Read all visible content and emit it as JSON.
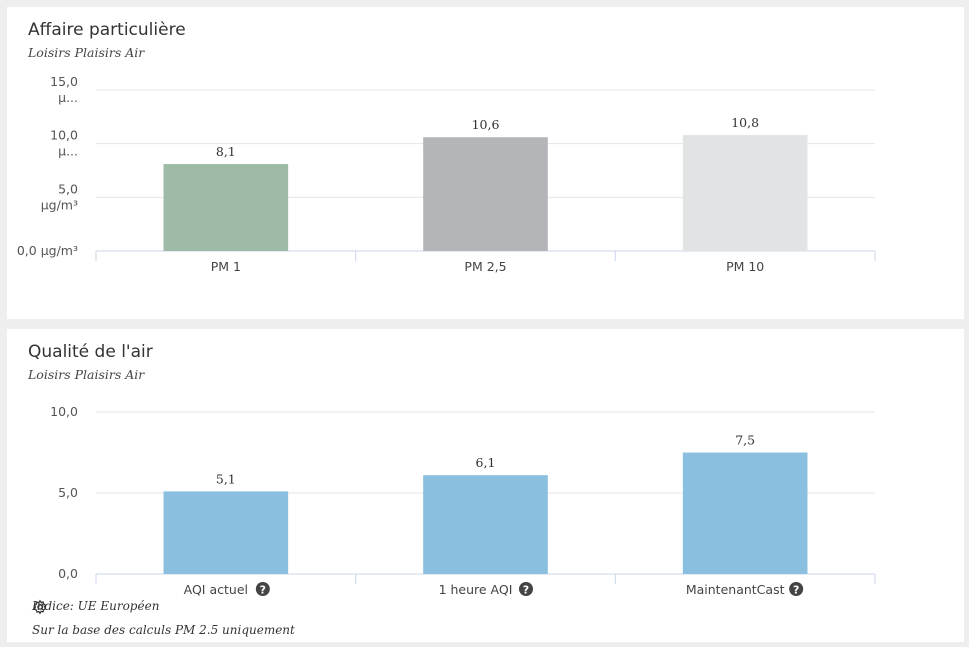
{
  "panels": {
    "pm": {
      "title": "Affaire particulière",
      "subtitle": "Loisirs Plaisirs Air"
    },
    "aqi": {
      "title": "Qualité de l'air",
      "subtitle": "Loisirs Plaisirs Air",
      "index_label": "Indice: UE Européen",
      "basis_note": "Sur la base des calculs PM 2.5 uniquement"
    }
  },
  "chart_data": [
    {
      "type": "bar",
      "title": "Affaire particulière",
      "subtitle": "Loisirs Plaisirs Air",
      "categories": [
        "PM 1",
        "PM 2,5",
        "PM 10"
      ],
      "values": [
        8.1,
        10.6,
        10.8
      ],
      "value_labels": [
        "8,1",
        "10,6",
        "10,8"
      ],
      "bar_colors": [
        "#9dbba7",
        "#b3b5b9",
        "#e2e3e4"
      ],
      "yticks": [
        0,
        5,
        10,
        15
      ],
      "ytick_labels": [
        "0,0 µg/m³",
        "5,0 µg/m³",
        "10,0 µ...",
        "15,0 µ..."
      ],
      "ylim": [
        0,
        15
      ],
      "grid": true,
      "legend": "none"
    },
    {
      "type": "bar",
      "title": "Qualité de l'air",
      "subtitle": "Loisirs Plaisirs Air",
      "categories": [
        "AQI actuel",
        "1 heure AQI",
        "MaintenantCast"
      ],
      "values": [
        5.1,
        6.1,
        7.5
      ],
      "value_labels": [
        "5,1",
        "6,1",
        "7,5"
      ],
      "bar_colors": [
        "#8bbfdf",
        "#8bbfdf",
        "#8bbfdf"
      ],
      "category_help_icons": [
        true,
        true,
        true
      ],
      "yticks": [
        0,
        5,
        10
      ],
      "ytick_labels": [
        "0,0",
        "5,0",
        "10,0"
      ],
      "ylim": [
        0,
        10
      ],
      "grid": true,
      "legend": "none"
    }
  ]
}
